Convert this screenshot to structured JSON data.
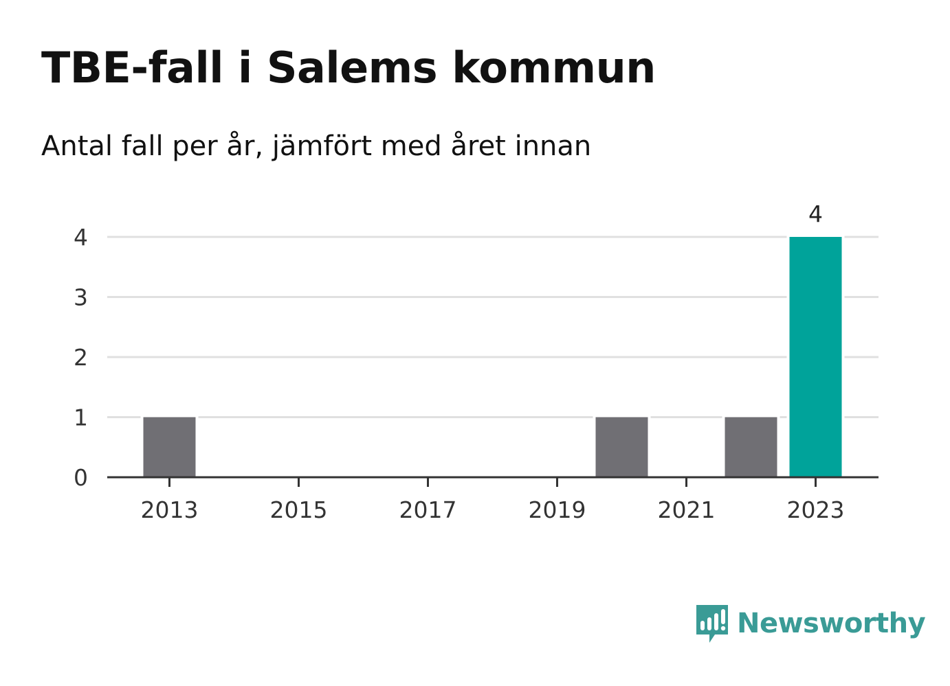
{
  "chart_data": {
    "type": "bar",
    "title": "TBE-fall i Salems kommun",
    "subtitle": "Antal fall per år, jämfört med året innan",
    "categories": [
      2013,
      2014,
      2015,
      2016,
      2017,
      2018,
      2019,
      2020,
      2021,
      2022,
      2023
    ],
    "values": [
      1,
      0,
      0,
      0,
      0,
      0,
      0,
      1,
      0,
      1,
      4
    ],
    "xticks": [
      "2013",
      "2015",
      "2017",
      "2019",
      "2021",
      "2023"
    ],
    "yticks": [
      0,
      1,
      2,
      3,
      4
    ],
    "ylim": [
      0,
      4
    ],
    "grid": true,
    "highlight_category": 2023,
    "highlight_value_label": "4",
    "colors": {
      "default_bar": "#706f74",
      "highlight_bar": "#00a39a",
      "grid": "#e0e0e0",
      "axis": "#333333"
    }
  },
  "brand": {
    "name": "Newsworthy",
    "icon": "newsworthy-logo-icon",
    "color": "#3a9b96"
  }
}
